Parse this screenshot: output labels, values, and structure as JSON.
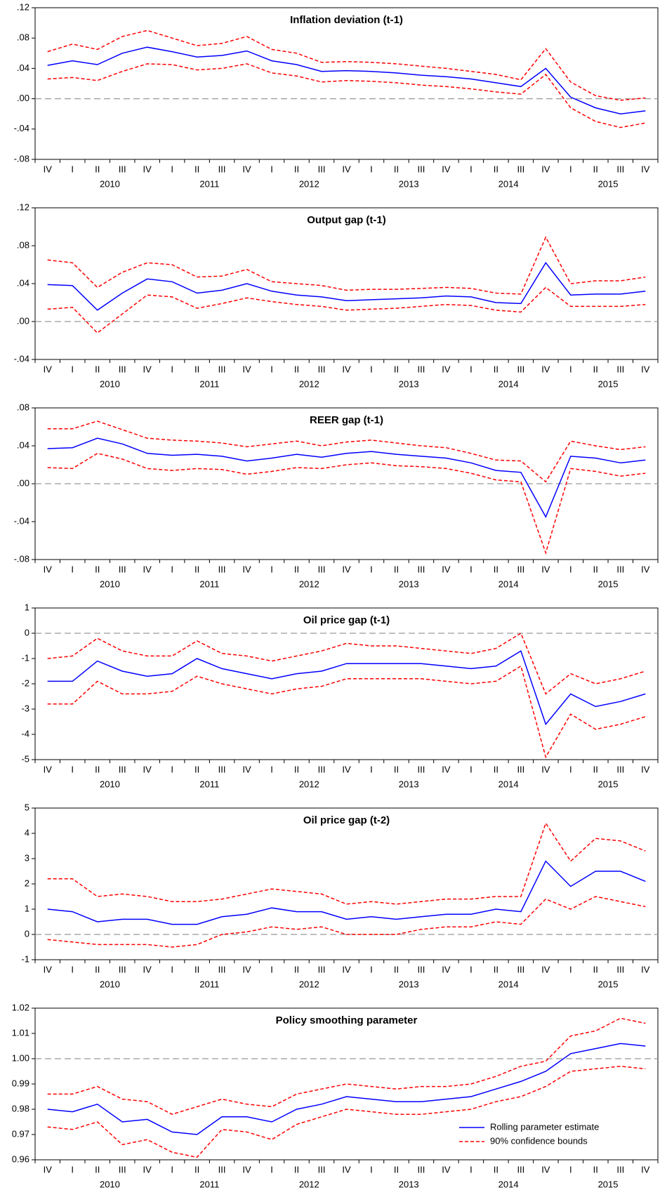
{
  "chart_data": [
    {
      "type": "line",
      "title": "Inflation deviation (t-1)",
      "categories": [
        "IV",
        "I",
        "II",
        "III",
        "IV",
        "I",
        "II",
        "III",
        "IV",
        "I",
        "II",
        "III",
        "IV",
        "I",
        "II",
        "III",
        "IV",
        "I",
        "II",
        "III",
        "IV",
        "I",
        "II",
        "III",
        "IV"
      ],
      "years": [
        "2010",
        "2011",
        "2012",
        "2013",
        "2014",
        "2015"
      ],
      "ylim": [
        -0.08,
        0.12
      ],
      "yticks": [
        {
          "value": -0.08,
          "label": "-.08"
        },
        {
          "value": -0.04,
          "label": "-.04"
        },
        {
          "value": 0,
          "label": ".00"
        },
        {
          "value": 0.04,
          "label": ".04"
        },
        {
          "value": 0.08,
          "label": ".08"
        },
        {
          "value": 0.12,
          "label": ".12"
        }
      ],
      "refline": 0,
      "series": [
        {
          "color": "#0000ff",
          "values": [
            0.044,
            0.05,
            0.045,
            0.06,
            0.068,
            0.062,
            0.055,
            0.057,
            0.063,
            0.05,
            0.045,
            0.036,
            0.037,
            0.036,
            0.034,
            0.031,
            0.029,
            0.026,
            0.021,
            0.016,
            0.04,
            0.002,
            -0.012,
            -0.02,
            -0.016
          ]
        },
        {
          "color": "#ff0000",
          "dash": true,
          "values": [
            0.062,
            0.072,
            0.065,
            0.082,
            0.09,
            0.08,
            0.07,
            0.073,
            0.082,
            0.065,
            0.06,
            0.048,
            0.049,
            0.048,
            0.046,
            0.043,
            0.04,
            0.036,
            0.032,
            0.025,
            0.066,
            0.022,
            0.004,
            -0.002,
            0.001
          ]
        },
        {
          "color": "#ff0000",
          "dash": true,
          "values": [
            0.026,
            0.028,
            0.024,
            0.036,
            0.046,
            0.045,
            0.038,
            0.04,
            0.046,
            0.034,
            0.03,
            0.022,
            0.024,
            0.023,
            0.021,
            0.018,
            0.016,
            0.013,
            0.009,
            0.006,
            0.032,
            -0.012,
            -0.03,
            -0.038,
            -0.032
          ]
        }
      ]
    },
    {
      "type": "line",
      "title": "Output gap (t-1)",
      "categories": [
        "IV",
        "I",
        "II",
        "III",
        "IV",
        "I",
        "II",
        "III",
        "IV",
        "I",
        "II",
        "III",
        "IV",
        "I",
        "II",
        "III",
        "IV",
        "I",
        "II",
        "III",
        "IV",
        "I",
        "II",
        "III",
        "IV"
      ],
      "years": [
        "2010",
        "2011",
        "2012",
        "2013",
        "2014",
        "2015"
      ],
      "ylim": [
        -0.04,
        0.12
      ],
      "yticks": [
        {
          "value": -0.04,
          "label": "-.04"
        },
        {
          "value": 0,
          "label": ".00"
        },
        {
          "value": 0.04,
          "label": ".04"
        },
        {
          "value": 0.08,
          "label": ".08"
        },
        {
          "value": 0.12,
          "label": ".12"
        }
      ],
      "refline": 0,
      "series": [
        {
          "color": "#0000ff",
          "values": [
            0.039,
            0.038,
            0.012,
            0.03,
            0.045,
            0.042,
            0.03,
            0.033,
            0.04,
            0.032,
            0.028,
            0.026,
            0.022,
            0.023,
            0.024,
            0.025,
            0.027,
            0.026,
            0.02,
            0.019,
            0.062,
            0.028,
            0.029,
            0.029,
            0.032
          ]
        },
        {
          "color": "#ff0000",
          "dash": true,
          "values": [
            0.065,
            0.062,
            0.036,
            0.052,
            0.062,
            0.06,
            0.047,
            0.048,
            0.055,
            0.042,
            0.04,
            0.038,
            0.033,
            0.034,
            0.034,
            0.035,
            0.036,
            0.035,
            0.03,
            0.029,
            0.089,
            0.04,
            0.043,
            0.043,
            0.047
          ]
        },
        {
          "color": "#ff0000",
          "dash": true,
          "values": [
            0.013,
            0.015,
            -0.012,
            0.008,
            0.028,
            0.026,
            0.014,
            0.019,
            0.025,
            0.021,
            0.018,
            0.016,
            0.012,
            0.013,
            0.014,
            0.016,
            0.018,
            0.017,
            0.012,
            0.01,
            0.036,
            0.016,
            0.016,
            0.016,
            0.018
          ]
        }
      ]
    },
    {
      "type": "line",
      "title": "REER gap (t-1)",
      "categories": [
        "IV",
        "I",
        "II",
        "III",
        "IV",
        "I",
        "II",
        "III",
        "IV",
        "I",
        "II",
        "III",
        "IV",
        "I",
        "II",
        "III",
        "IV",
        "I",
        "II",
        "III",
        "IV",
        "I",
        "II",
        "III",
        "IV"
      ],
      "years": [
        "2010",
        "2011",
        "2012",
        "2013",
        "2014",
        "2015"
      ],
      "ylim": [
        -0.08,
        0.08
      ],
      "yticks": [
        {
          "value": -0.08,
          "label": "-.08"
        },
        {
          "value": -0.04,
          "label": "-.04"
        },
        {
          "value": 0,
          "label": ".00"
        },
        {
          "value": 0.04,
          "label": ".04"
        },
        {
          "value": 0.08,
          "label": ".08"
        }
      ],
      "refline": 0,
      "series": [
        {
          "color": "#0000ff",
          "values": [
            0.037,
            0.038,
            0.048,
            0.042,
            0.032,
            0.03,
            0.031,
            0.029,
            0.024,
            0.027,
            0.031,
            0.028,
            0.032,
            0.034,
            0.031,
            0.029,
            0.027,
            0.022,
            0.014,
            0.012,
            -0.035,
            0.029,
            0.027,
            0.022,
            0.025
          ]
        },
        {
          "color": "#ff0000",
          "dash": true,
          "values": [
            0.058,
            0.058,
            0.066,
            0.057,
            0.048,
            0.046,
            0.045,
            0.043,
            0.039,
            0.042,
            0.045,
            0.04,
            0.044,
            0.046,
            0.043,
            0.04,
            0.038,
            0.032,
            0.025,
            0.024,
            0.002,
            0.045,
            0.04,
            0.036,
            0.039
          ]
        },
        {
          "color": "#ff0000",
          "dash": true,
          "values": [
            0.017,
            0.016,
            0.032,
            0.026,
            0.016,
            0.014,
            0.016,
            0.015,
            0.01,
            0.013,
            0.017,
            0.016,
            0.02,
            0.022,
            0.019,
            0.018,
            0.016,
            0.011,
            0.004,
            0.002,
            -0.073,
            0.016,
            0.013,
            0.008,
            0.011
          ]
        }
      ]
    },
    {
      "type": "line",
      "title": "Oil price gap (t-1)",
      "categories": [
        "IV",
        "I",
        "II",
        "III",
        "IV",
        "I",
        "II",
        "III",
        "IV",
        "I",
        "II",
        "III",
        "IV",
        "I",
        "II",
        "III",
        "IV",
        "I",
        "II",
        "III",
        "IV",
        "I",
        "II",
        "III",
        "IV"
      ],
      "years": [
        "2010",
        "2011",
        "2012",
        "2013",
        "2014",
        "2015"
      ],
      "ylim": [
        -5,
        1
      ],
      "yticks": [
        -5,
        -4,
        -3,
        -2,
        -1,
        0,
        1
      ],
      "refline": 0,
      "series": [
        {
          "color": "#0000ff",
          "values": [
            -1.9,
            -1.9,
            -1.1,
            -1.5,
            -1.7,
            -1.6,
            -1.0,
            -1.4,
            -1.6,
            -1.8,
            -1.6,
            -1.5,
            -1.2,
            -1.2,
            -1.2,
            -1.2,
            -1.3,
            -1.4,
            -1.3,
            -0.7,
            -3.6,
            -2.4,
            -2.9,
            -2.7,
            -2.4
          ]
        },
        {
          "color": "#ff0000",
          "dash": true,
          "values": [
            -1.0,
            -0.9,
            -0.2,
            -0.7,
            -0.9,
            -0.9,
            -0.3,
            -0.8,
            -0.9,
            -1.1,
            -0.9,
            -0.7,
            -0.4,
            -0.5,
            -0.5,
            -0.6,
            -0.7,
            -0.8,
            -0.6,
            0.0,
            -2.4,
            -1.6,
            -2.0,
            -1.8,
            -1.5
          ]
        },
        {
          "color": "#ff0000",
          "dash": true,
          "values": [
            -2.8,
            -2.8,
            -1.9,
            -2.4,
            -2.4,
            -2.3,
            -1.7,
            -2.0,
            -2.2,
            -2.4,
            -2.2,
            -2.1,
            -1.8,
            -1.8,
            -1.8,
            -1.8,
            -1.9,
            -2.0,
            -1.9,
            -1.3,
            -4.9,
            -3.2,
            -3.8,
            -3.6,
            -3.3
          ]
        }
      ]
    },
    {
      "type": "line",
      "title": "Oil price gap (t-2)",
      "categories": [
        "IV",
        "I",
        "II",
        "III",
        "IV",
        "I",
        "II",
        "III",
        "IV",
        "I",
        "II",
        "III",
        "IV",
        "I",
        "II",
        "III",
        "IV",
        "I",
        "II",
        "III",
        "IV",
        "I",
        "II",
        "III",
        "IV"
      ],
      "years": [
        "2010",
        "2011",
        "2012",
        "2013",
        "2014",
        "2015"
      ],
      "ylim": [
        -1,
        5
      ],
      "yticks": [
        -1,
        0,
        1,
        2,
        3,
        4,
        5
      ],
      "refline": 0,
      "series": [
        {
          "color": "#0000ff",
          "values": [
            1.0,
            0.9,
            0.5,
            0.6,
            0.6,
            0.4,
            0.4,
            0.7,
            0.8,
            1.05,
            0.9,
            0.9,
            0.6,
            0.7,
            0.6,
            0.7,
            0.8,
            0.8,
            1.0,
            0.9,
            2.9,
            1.9,
            2.5,
            2.5,
            2.1
          ]
        },
        {
          "color": "#ff0000",
          "dash": true,
          "values": [
            2.2,
            2.2,
            1.5,
            1.6,
            1.5,
            1.3,
            1.3,
            1.4,
            1.6,
            1.8,
            1.7,
            1.6,
            1.2,
            1.3,
            1.2,
            1.3,
            1.4,
            1.4,
            1.5,
            1.5,
            4.4,
            2.9,
            3.8,
            3.7,
            3.3
          ]
        },
        {
          "color": "#ff0000",
          "dash": true,
          "values": [
            -0.2,
            -0.3,
            -0.4,
            -0.4,
            -0.4,
            -0.5,
            -0.4,
            0.0,
            0.1,
            0.3,
            0.2,
            0.3,
            0.0,
            0.0,
            0.0,
            0.2,
            0.3,
            0.3,
            0.5,
            0.4,
            1.4,
            1.0,
            1.5,
            1.3,
            1.1
          ]
        }
      ]
    },
    {
      "type": "line",
      "title": "Policy smoothing parameter",
      "categories": [
        "IV",
        "I",
        "II",
        "III",
        "IV",
        "I",
        "II",
        "III",
        "IV",
        "I",
        "II",
        "III",
        "IV",
        "I",
        "II",
        "III",
        "IV",
        "I",
        "II",
        "III",
        "IV",
        "I",
        "II",
        "III",
        "IV"
      ],
      "years": [
        "2010",
        "2011",
        "2012",
        "2013",
        "2014",
        "2015"
      ],
      "ylim": [
        0.96,
        1.02
      ],
      "yticks": [
        0.96,
        0.97,
        0.98,
        0.99,
        {
          "value": 1.0,
          "label": "1.00"
        },
        1.01,
        1.02
      ],
      "refline": 1.0,
      "legend": "lower right",
      "series": [
        {
          "name": "Rolling parameter estimate",
          "color": "#0000ff",
          "values": [
            0.98,
            0.979,
            0.982,
            0.975,
            0.976,
            0.971,
            0.97,
            0.977,
            0.977,
            0.975,
            0.98,
            0.982,
            0.985,
            0.984,
            0.983,
            0.983,
            0.984,
            0.985,
            0.988,
            0.991,
            0.995,
            1.002,
            1.004,
            1.006,
            1.005
          ]
        },
        {
          "name": "90% confidence bounds",
          "color": "#ff0000",
          "dash": true,
          "values": [
            0.986,
            0.986,
            0.989,
            0.984,
            0.983,
            0.978,
            0.981,
            0.984,
            0.982,
            0.981,
            0.986,
            0.988,
            0.99,
            0.989,
            0.988,
            0.989,
            0.989,
            0.99,
            0.993,
            0.997,
            0.999,
            1.009,
            1.011,
            1.016,
            1.014
          ]
        },
        {
          "color": "#ff0000",
          "dash": true,
          "values": [
            0.973,
            0.972,
            0.975,
            0.966,
            0.968,
            0.963,
            0.961,
            0.972,
            0.971,
            0.968,
            0.974,
            0.977,
            0.98,
            0.979,
            0.978,
            0.978,
            0.979,
            0.98,
            0.983,
            0.985,
            0.989,
            0.995,
            0.996,
            0.997,
            0.996
          ]
        }
      ]
    }
  ]
}
